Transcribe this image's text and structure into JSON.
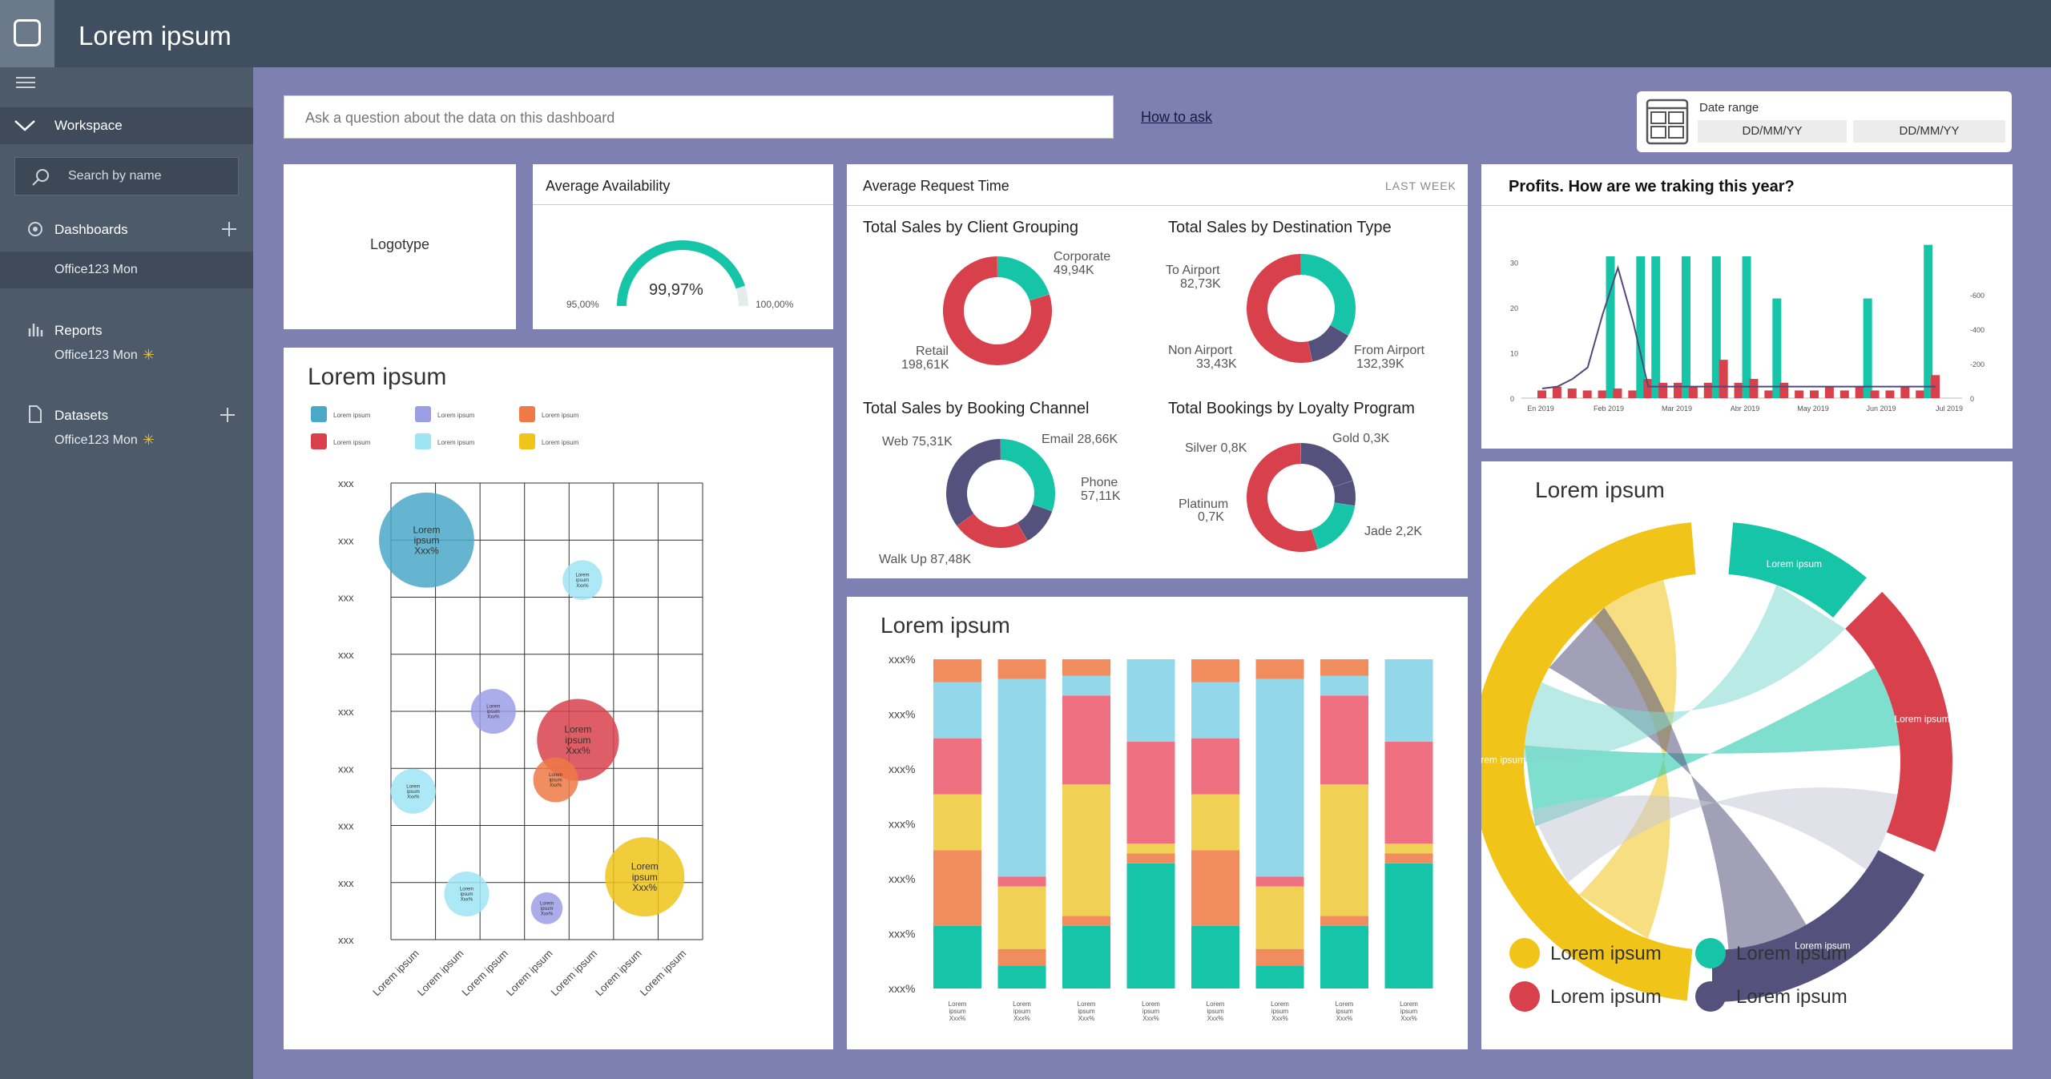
{
  "app": {
    "title": "Lorem ipsum"
  },
  "sidebar": {
    "workspace_label": "Workspace",
    "search_placeholder": "Search by name",
    "dashboards_label": "Dashboards",
    "dashboards_item": "Office123 Mon",
    "reports_label": "Reports",
    "reports_item": "Office123 Mon",
    "datasets_label": "Datasets",
    "datasets_item": "Office123 Mon"
  },
  "qa": {
    "placeholder": "Ask a question about the data on this dashboard",
    "how_to_ask": "How to ask"
  },
  "date_range": {
    "label": "Date range",
    "from": "DD/MM/YY",
    "to": "DD/MM/YY"
  },
  "logo": {
    "text": "Logotype"
  },
  "availability": {
    "title": "Average Availability",
    "value": "99,97%",
    "min": "95,00%",
    "max": "100,00%",
    "fraction": 0.9
  },
  "request": {
    "title": "Average Request Time",
    "period": "LAST WEEK",
    "client": {
      "title": "Total Sales by Client Grouping",
      "corporate": "Corporate",
      "corporate_val": "49,94K",
      "retail": "Retail",
      "retail_val": "198,61K"
    },
    "destination": {
      "title": "Total Sales by Destination Type",
      "to_airport": "To Airport",
      "to_airport_val": "82,73K",
      "non_airport": "Non Airport",
      "non_airport_val": "33,43K",
      "from_airport": "From Airport",
      "from_airport_val": "132,39K"
    },
    "booking": {
      "title": "Total Sales by Booking Channel",
      "web": "Web 75,31K",
      "email": "Email 28,66K",
      "phone": "Phone",
      "phone_val": "57,11K",
      "walkup": "Walk Up 87,48K"
    },
    "loyalty": {
      "title": "Total Bookings by Loyalty Program",
      "silver": "Silver 0,8K",
      "gold": "Gold 0,3K",
      "platinum": "Platinum",
      "platinum_val": "0,7K",
      "jade": "Jade 2,2K"
    }
  },
  "profits": {
    "title": "Profits. How are we traking this year?"
  },
  "bubble": {
    "title": "Lorem ipsum"
  },
  "stack": {
    "title": "Lorem ipsum"
  },
  "chord": {
    "title": "Lorem ipsum"
  },
  "colors": {
    "teal": "#16c4a8",
    "red": "#d8414b",
    "blue": "#4aa8c8",
    "yellow": "#f0c419",
    "navy": "#54527c",
    "cyan": "#90d6eb",
    "orange": "#ef8c5e",
    "pink": "#ef7080",
    "purple": "#9c9ee6"
  },
  "chart_data": [
    {
      "type": "scatter",
      "title": "Lorem ipsum",
      "legend": [
        {
          "name": "Lorem ipsum",
          "color": "#4aa8c8"
        },
        {
          "name": "Lorem ipsum",
          "color": "#9c9ee6"
        },
        {
          "name": "Lorem ipsum",
          "color": "#ef7a45"
        },
        {
          "name": "Lorem ipsum",
          "color": "#d8414b"
        },
        {
          "name": "Lorem ipsum",
          "color": "#9ee4f4"
        },
        {
          "name": "Lorem ipsum",
          "color": "#f0c419"
        }
      ],
      "yticks": [
        "xxx",
        "xxx",
        "xxx",
        "xxx",
        "xxx",
        "xxx",
        "xxx",
        "xxx",
        "xxx"
      ],
      "xticks": [
        "Lorem ipsum",
        "Lorem ipsum",
        "Lorem ipsum",
        "Lorem ipsum",
        "Lorem ipsum",
        "Lorem ipsum",
        "Lorem ipsum"
      ],
      "points": [
        {
          "x": 0.8,
          "y": 7.0,
          "size": 36,
          "color": "#4aa8c8",
          "label": [
            "Lorem",
            "ipsum",
            "Xxx%"
          ]
        },
        {
          "x": 4.3,
          "y": 6.3,
          "size": 15,
          "color": "#9ee4f4",
          "label": [
            "Lorem",
            "ipsum",
            "Xxx%"
          ]
        },
        {
          "x": 2.3,
          "y": 4.0,
          "size": 17,
          "color": "#9c9ee6",
          "label": [
            "Lorem",
            "ipsum",
            "Xxx%"
          ]
        },
        {
          "x": 4.2,
          "y": 3.5,
          "size": 31,
          "color": "#d8414b",
          "label": [
            "Lorem",
            "ipsum",
            "Xxx%"
          ]
        },
        {
          "x": 3.7,
          "y": 2.8,
          "size": 17,
          "color": "#ef7a45",
          "label": [
            "Lorem",
            "ipsum",
            "Xxx%"
          ]
        },
        {
          "x": 0.5,
          "y": 2.6,
          "size": 17,
          "color": "#9ee4f4",
          "label": [
            "Lorem",
            "ipsum",
            "Xxx%"
          ]
        },
        {
          "x": 1.7,
          "y": 0.8,
          "size": 17,
          "color": "#9ee4f4",
          "label": [
            "Lorem",
            "ipsum",
            "Xxx%"
          ]
        },
        {
          "x": 3.5,
          "y": 0.55,
          "size": 12,
          "color": "#9c9ee6",
          "label": [
            "Lorem",
            "ipsum",
            "Xxx%"
          ]
        },
        {
          "x": 5.7,
          "y": 1.1,
          "size": 30,
          "color": "#f0c419",
          "label": [
            "Lorem",
            "ipsum",
            "Xxx%"
          ]
        }
      ]
    },
    {
      "type": "bar",
      "stacked": true,
      "title": "Lorem ipsum",
      "yticks": [
        "xxx%",
        "xxx%",
        "xxx%",
        "xxx%",
        "xxx%",
        "xxx%",
        "xxx%"
      ],
      "categories": [
        [
          "Lorem",
          "ipsum",
          "Xxx%"
        ],
        [
          "Lorem",
          "ipsum",
          "Xxx%"
        ],
        [
          "Lorem",
          "ipsum",
          "Xxx%"
        ],
        [
          "Lorem",
          "ipsum",
          "Xxx%"
        ],
        [
          "Lorem",
          "ipsum",
          "Xxx%"
        ],
        [
          "Lorem",
          "ipsum",
          "Xxx%"
        ],
        [
          "Lorem",
          "ipsum",
          "Xxx%"
        ],
        [
          "Lorem",
          "ipsum",
          "Xxx%"
        ]
      ],
      "series": [
        {
          "color": "#16c4a8",
          "values": [
            19,
            7,
            19,
            38,
            19,
            7,
            19,
            38
          ]
        },
        {
          "color": "#f08c5e",
          "values": [
            23,
            5,
            3,
            3,
            23,
            5,
            3,
            3
          ]
        },
        {
          "color": "#f0d055",
          "values": [
            17,
            19,
            40,
            3,
            17,
            19,
            40,
            3
          ]
        },
        {
          "color": "#ef7080",
          "values": [
            17,
            3,
            27,
            31,
            17,
            3,
            27,
            31
          ]
        },
        {
          "color": "#92d7ea",
          "values": [
            17,
            60,
            6,
            25,
            17,
            60,
            6,
            25
          ]
        },
        {
          "color": "#f08c5e",
          "values": [
            7,
            6,
            5,
            0,
            7,
            6,
            5,
            0
          ]
        }
      ]
    },
    {
      "type": "bar",
      "title": "Profits. How are we traking this year?",
      "yticks": [
        0,
        10,
        20,
        30
      ],
      "y2ticks": [
        0,
        200,
        400,
        600
      ],
      "xticks": [
        "En 2019",
        "Feb 2019",
        "Mar 2019",
        "Abr 2019",
        "May 2019",
        "Jun 2019",
        "Jul 2019"
      ],
      "series": [
        {
          "name": "",
          "color": "#d8414b",
          "values": [
            2,
            3,
            2.5,
            2,
            2,
            2.5,
            2,
            5,
            4,
            4,
            3,
            4,
            10,
            4,
            5,
            2,
            4,
            2,
            2,
            3,
            2,
            3,
            2,
            2,
            3,
            2,
            6
          ]
        },
        {
          "name": "",
          "color": "#16c4a8",
          "values": [
            0,
            0,
            0,
            0,
            37,
            0,
            37,
            37,
            0,
            37,
            0,
            37,
            0,
            37,
            0,
            26,
            0,
            0,
            0,
            0,
            0,
            26,
            0,
            0,
            0,
            40,
            0
          ]
        }
      ],
      "line": {
        "color": "#4e4b7c",
        "values": [
          2.5,
          3,
          5,
          8,
          22,
          34,
          20,
          3,
          3,
          3,
          3,
          3,
          3,
          3,
          3,
          3,
          3,
          3,
          3,
          3,
          3,
          3,
          3,
          3,
          3,
          3,
          3
        ]
      }
    },
    {
      "type": "pie",
      "title": "Lorem ipsum",
      "categories": [
        "Lorem ipsum",
        "Lorem ipsum",
        "Lorem ipsum",
        "Lorem ipsum"
      ],
      "colors": [
        "#f0c419",
        "#16c4a8",
        "#d8414b",
        "#54527c"
      ],
      "arc_labels": [
        "Lorem ipsum",
        "Lorem ipsum",
        "Lorem ipsum",
        "Lorem ipsum"
      ],
      "values": [
        45,
        10,
        15,
        30
      ]
    },
    {
      "type": "pie",
      "title": "Total Sales by Client Grouping",
      "categories": [
        "Corporate",
        "Retail"
      ],
      "values": [
        49.94,
        198.61
      ],
      "colors": [
        "#16c4a8",
        "#d8414b"
      ]
    },
    {
      "type": "pie",
      "title": "Total Sales by Destination Type",
      "categories": [
        "To Airport",
        "Non Airport",
        "From Airport"
      ],
      "values": [
        82.73,
        33.43,
        132.39
      ],
      "colors": [
        "#16c4a8",
        "#54527c",
        "#d8414b"
      ]
    },
    {
      "type": "pie",
      "title": "Total Sales by Booking Channel",
      "categories": [
        "Web",
        "Email",
        "Phone",
        "Walk Up"
      ],
      "values": [
        75.31,
        28.66,
        57.11,
        87.48
      ],
      "colors": [
        "#16c4a8",
        "#54527c",
        "#d8414b",
        "#54527c"
      ]
    },
    {
      "type": "pie",
      "title": "Total Bookings by Loyalty Program",
      "categories": [
        "Silver",
        "Gold",
        "Platinum",
        "Jade"
      ],
      "values": [
        0.8,
        0.3,
        0.7,
        2.2
      ],
      "colors": [
        "#54527c",
        "#54527c",
        "#16c4a8",
        "#d8414b"
      ]
    }
  ]
}
